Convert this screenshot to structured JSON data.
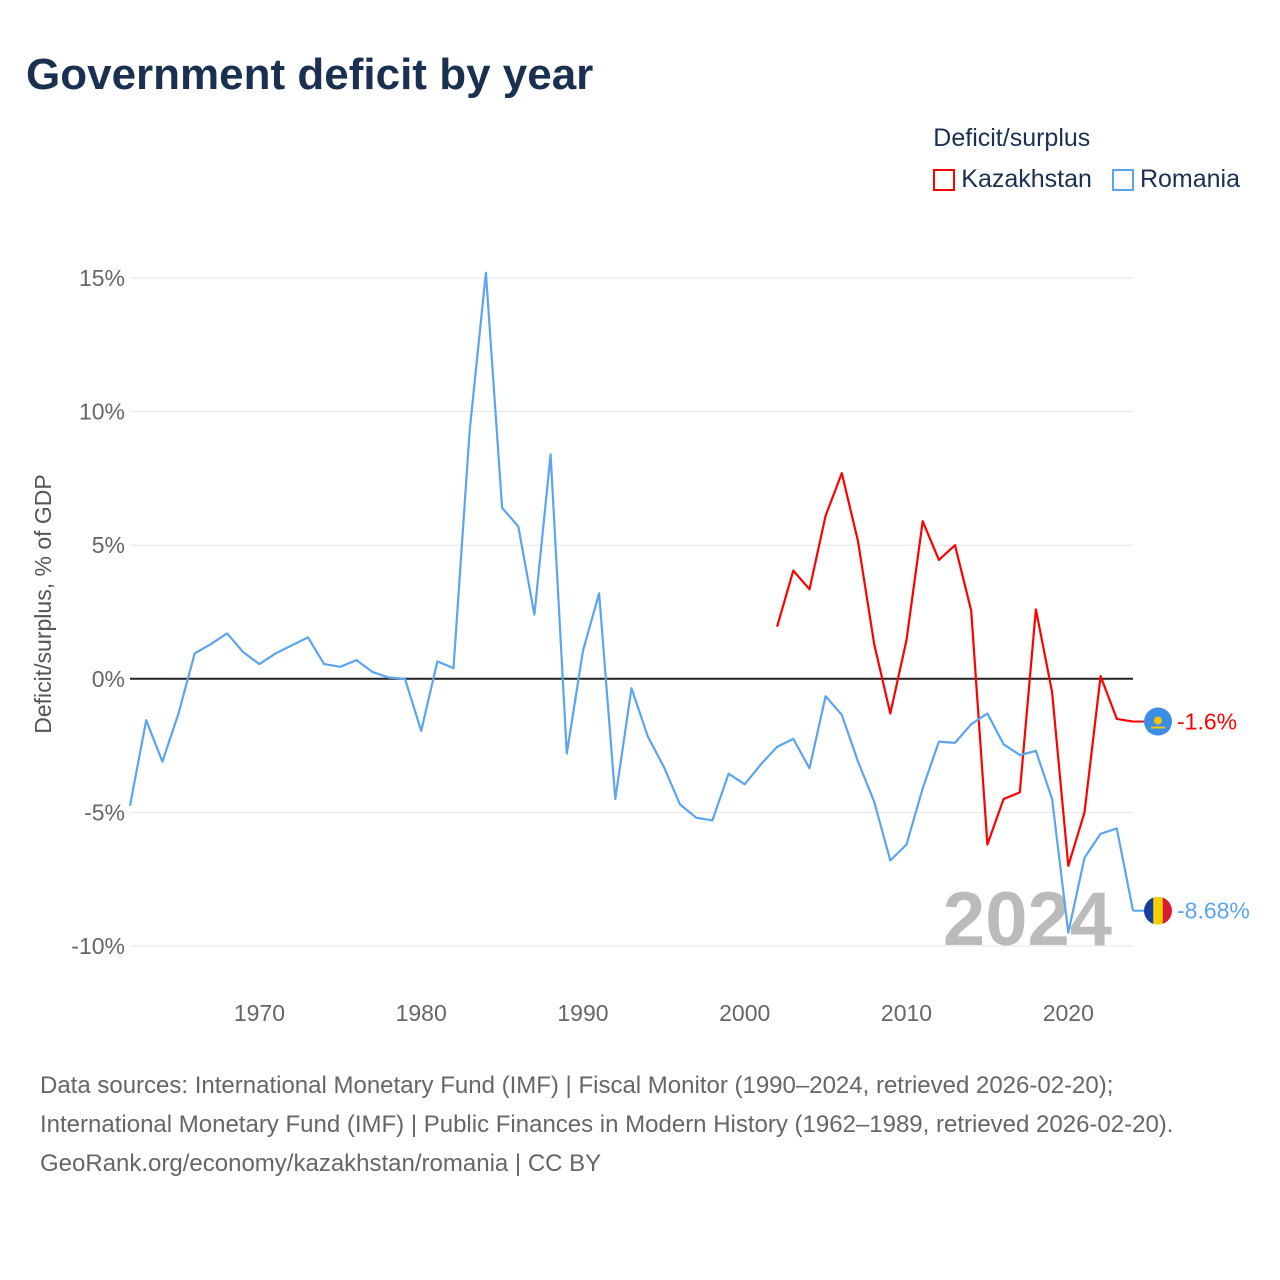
{
  "title": "Government deficit by year",
  "legend": {
    "title": "Deficit/surplus",
    "items": [
      {
        "name": "Kazakhstan",
        "color": "#ff0000"
      },
      {
        "name": "Romania",
        "color": "#5aa5f0"
      }
    ]
  },
  "watermark_year": "2024",
  "footer": {
    "sources": "Data sources: International Monetary Fund (IMF) | Fiscal Monitor (1990–2024, retrieved 2026-02-20); International Monetary Fund (IMF) | Public Finances in Modern History (1962–1989, retrieved 2026-02-20).",
    "credit": "GeoRank.org/economy/kazakhstan/romania | CC BY"
  },
  "chart_data": {
    "type": "line",
    "title": "Government deficit by year",
    "xlabel": "",
    "ylabel": "Deficit/surplus, % of GDP",
    "xlim": [
      1962,
      2024
    ],
    "ylim": [
      -10,
      15
    ],
    "x_ticks": [
      1970,
      1980,
      1990,
      2000,
      2010,
      2020
    ],
    "y_ticks": [
      {
        "v": 15,
        "label": "15%"
      },
      {
        "v": 10,
        "label": "10%"
      },
      {
        "v": 5,
        "label": "5%"
      },
      {
        "v": 0,
        "label": "0%"
      },
      {
        "v": -5,
        "label": "-5%"
      },
      {
        "v": -10,
        "label": "-10%"
      }
    ],
    "grid": true,
    "legend_position": "top-right",
    "series": [
      {
        "name": "Kazakhstan",
        "color": "#ff0000",
        "end_label": "-1.6%",
        "start_year": 2002,
        "values": [
          1.95,
          4.05,
          3.35,
          6.1,
          7.7,
          5.15,
          1.3,
          -1.3,
          1.45,
          5.9,
          4.45,
          5.0,
          2.55,
          -6.2,
          -4.5,
          -4.25,
          2.6,
          -0.5,
          -7.0,
          -5.0,
          0.1,
          -1.5,
          -1.6
        ]
      },
      {
        "name": "Romania",
        "color": "#5aa5f0",
        "end_label": "-8.68%",
        "start_year": 1962,
        "values": [
          -4.75,
          -1.55,
          -3.1,
          -1.3,
          0.95,
          1.3,
          1.7,
          1.0,
          0.55,
          0.95,
          1.25,
          1.55,
          0.55,
          0.45,
          0.7,
          0.25,
          0.05,
          0.0,
          -1.95,
          0.65,
          0.4,
          9.3,
          15.2,
          6.4,
          5.7,
          2.4,
          8.4,
          -2.8,
          1.05,
          3.2,
          -4.5,
          -0.35,
          -2.15,
          -3.3,
          -4.7,
          -5.2,
          -5.3,
          -3.55,
          -3.95,
          -3.2,
          -2.55,
          -2.25,
          -3.35,
          -0.65,
          -1.35,
          -3.1,
          -4.6,
          -6.8,
          -6.2,
          -4.1,
          -2.35,
          -2.4,
          -1.7,
          -1.3,
          -2.45,
          -2.85,
          -2.7,
          -4.5,
          -9.5,
          -6.7,
          -5.8,
          -5.6,
          -8.68
        ]
      }
    ]
  }
}
